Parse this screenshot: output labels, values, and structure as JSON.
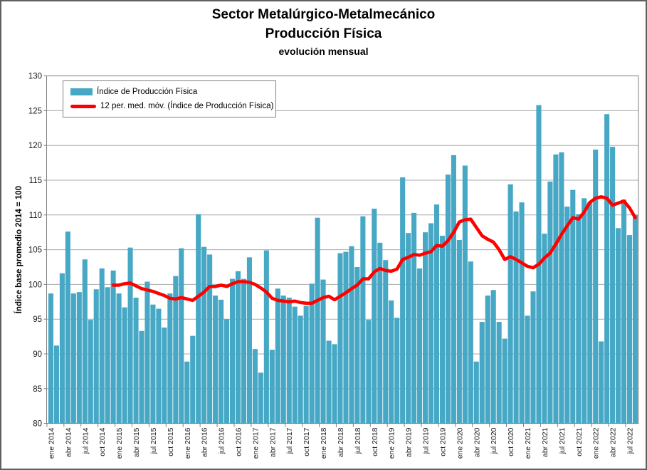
{
  "title": {
    "line1": "Sector Metalúrgico-Metalmecánico",
    "line2": "Producción Física",
    "line3": "evolución mensual"
  },
  "legend": {
    "items": [
      {
        "label": "Índice de Producción Física",
        "marker": "bar-swatch",
        "color": "#47A8C6"
      },
      {
        "label": "12 per. med. móv. (Índice de Producción Física)",
        "marker": "line-swatch",
        "color": "#FE0000"
      }
    ]
  },
  "y_axis": {
    "title": "Índice base promedio 2014 = 100",
    "tick_labels": [
      "80",
      "85",
      "90",
      "95",
      "100",
      "105",
      "110",
      "115",
      "120",
      "125",
      "130"
    ]
  },
  "x_axis": {
    "tick_labels": [
      "ene 2014",
      "abr 2014",
      "jul 2014",
      "oct 2014",
      "ene 2015",
      "abr 2015",
      "jul 2015",
      "oct 2015",
      "ene 2016",
      "abr 2016",
      "jul 2016",
      "oct 2016",
      "ene 2017",
      "abr 2017",
      "jul 2017",
      "oct 2017",
      "ene 2018",
      "abr 2018",
      "jul 2018",
      "oct 2018",
      "ene 2019",
      "abr 2019",
      "jul 2019",
      "oct 2019",
      "ene 2020",
      "abr 2020",
      "jul 2020",
      "oct 2020",
      "ene 2021",
      "abr 2021",
      "jul 2021",
      "oct 2021",
      "ene 2022",
      "abr 2022",
      "jul 2022"
    ]
  },
  "chart_data": {
    "type": "bar",
    "title": "Sector Metalúrgico-Metalmecánico Producción Física, evolución mensual",
    "xlabel": "",
    "ylabel": "Índice base promedio 2014 = 100",
    "ylim": [
      80,
      130
    ],
    "ytick_step": 5,
    "grid": true,
    "legend_position": "top-left",
    "bar_color": "#47A8C6",
    "line_color": "#FE0000",
    "grid_color": "#ABABAB",
    "axis_color": "#808080",
    "categories": [
      "ene 2014",
      "feb 2014",
      "mar 2014",
      "abr 2014",
      "may 2014",
      "jun 2014",
      "jul 2014",
      "ago 2014",
      "sep 2014",
      "oct 2014",
      "nov 2014",
      "dic 2014",
      "ene 2015",
      "feb 2015",
      "mar 2015",
      "abr 2015",
      "may 2015",
      "jun 2015",
      "jul 2015",
      "ago 2015",
      "sep 2015",
      "oct 2015",
      "nov 2015",
      "dic 2015",
      "ene 2016",
      "feb 2016",
      "mar 2016",
      "abr 2016",
      "may 2016",
      "jun 2016",
      "jul 2016",
      "ago 2016",
      "sep 2016",
      "oct 2016",
      "nov 2016",
      "dic 2016",
      "ene 2017",
      "feb 2017",
      "mar 2017",
      "abr 2017",
      "may 2017",
      "jun 2017",
      "jul 2017",
      "ago 2017",
      "sep 2017",
      "oct 2017",
      "nov 2017",
      "dic 2017",
      "ene 2018",
      "feb 2018",
      "mar 2018",
      "abr 2018",
      "may 2018",
      "jun 2018",
      "jul 2018",
      "ago 2018",
      "sep 2018",
      "oct 2018",
      "nov 2018",
      "dic 2018",
      "ene 2019",
      "feb 2019",
      "mar 2019",
      "abr 2019",
      "may 2019",
      "jun 2019",
      "jul 2019",
      "ago 2019",
      "sep 2019",
      "oct 2019",
      "nov 2019",
      "dic 2019",
      "ene 2020",
      "feb 2020",
      "mar 2020",
      "abr 2020",
      "may 2020",
      "jun 2020",
      "jul 2020",
      "ago 2020",
      "sep 2020",
      "oct 2020",
      "nov 2020",
      "dic 2020",
      "ene 2021",
      "feb 2021",
      "mar 2021",
      "abr 2021",
      "may 2021",
      "jun 2021",
      "jul 2021",
      "ago 2021",
      "sep 2021",
      "oct 2021",
      "nov 2021",
      "dic 2021",
      "ene 2022",
      "feb 2022",
      "mar 2022",
      "abr 2022",
      "may 2022",
      "jun 2022",
      "jul 2022",
      "ago 2022"
    ],
    "series": [
      {
        "name": "Índice de Producción Física",
        "type": "bar",
        "color": "#47A8C6",
        "values": [
          98.7,
          91.2,
          101.6,
          107.6,
          98.7,
          98.9,
          103.6,
          94.9,
          99.3,
          102.3,
          99.6,
          102.0,
          98.7,
          96.7,
          105.3,
          98.1,
          93.3,
          100.4,
          97.1,
          96.5,
          93.8,
          98.7,
          101.2,
          105.2,
          88.9,
          92.6,
          110.1,
          105.4,
          104.3,
          98.4,
          97.8,
          95.0,
          100.8,
          101.9,
          100.8,
          103.9,
          90.7,
          87.3,
          104.9,
          90.6,
          99.4,
          98.4,
          98.1,
          96.8,
          95.5,
          96.9,
          100.1,
          109.6,
          100.7,
          91.9,
          91.4,
          104.5,
          104.7,
          105.5,
          102.5,
          109.8,
          94.9,
          110.9,
          106.0,
          103.5,
          97.7,
          95.2,
          115.4,
          107.4,
          110.3,
          102.3,
          107.5,
          108.8,
          111.5,
          107.0,
          115.8,
          118.6,
          106.4,
          117.1,
          103.3,
          88.9,
          94.6,
          98.4,
          99.2,
          94.6,
          92.2,
          114.4,
          110.5,
          111.8,
          95.5,
          99.0,
          125.8,
          107.3,
          114.8,
          118.7,
          119.0,
          111.2,
          113.6,
          110.1,
          112.4,
          111.8,
          119.4,
          91.8,
          124.5,
          119.8,
          108.1,
          112.2,
          107.1,
          110.0
        ]
      },
      {
        "name": "12 per. med. móv. (Índice de Producción Física)",
        "type": "line",
        "color": "#FE0000",
        "values": [
          null,
          null,
          null,
          null,
          null,
          null,
          null,
          null,
          null,
          null,
          null,
          99.9,
          99.9,
          100.1,
          100.2,
          99.8,
          99.4,
          99.2,
          99.0,
          98.7,
          98.4,
          98.0,
          97.9,
          98.1,
          97.9,
          97.7,
          98.3,
          98.9,
          99.7,
          99.7,
          99.9,
          99.7,
          100.1,
          100.4,
          100.4,
          100.3,
          100.0,
          99.5,
          98.9,
          98.0,
          97.7,
          97.6,
          97.5,
          97.6,
          97.4,
          97.3,
          97.3,
          97.7,
          98.1,
          98.3,
          97.8,
          98.3,
          98.8,
          99.4,
          99.9,
          100.8,
          100.8,
          101.8,
          102.3,
          102.0,
          101.9,
          102.2,
          103.6,
          103.9,
          104.3,
          104.2,
          104.5,
          104.7,
          105.6,
          105.5,
          106.3,
          107.5,
          109.0,
          109.3,
          109.4,
          108.2,
          107.0,
          106.5,
          106.1,
          105.0,
          103.6,
          104.0,
          103.6,
          103.1,
          102.6,
          102.4,
          102.9,
          103.8,
          104.5,
          105.8,
          107.2,
          108.4,
          109.6,
          109.4,
          110.4,
          111.8,
          112.4,
          112.6,
          112.4,
          111.4,
          111.7,
          112.0,
          111.0,
          109.6
        ]
      }
    ]
  }
}
